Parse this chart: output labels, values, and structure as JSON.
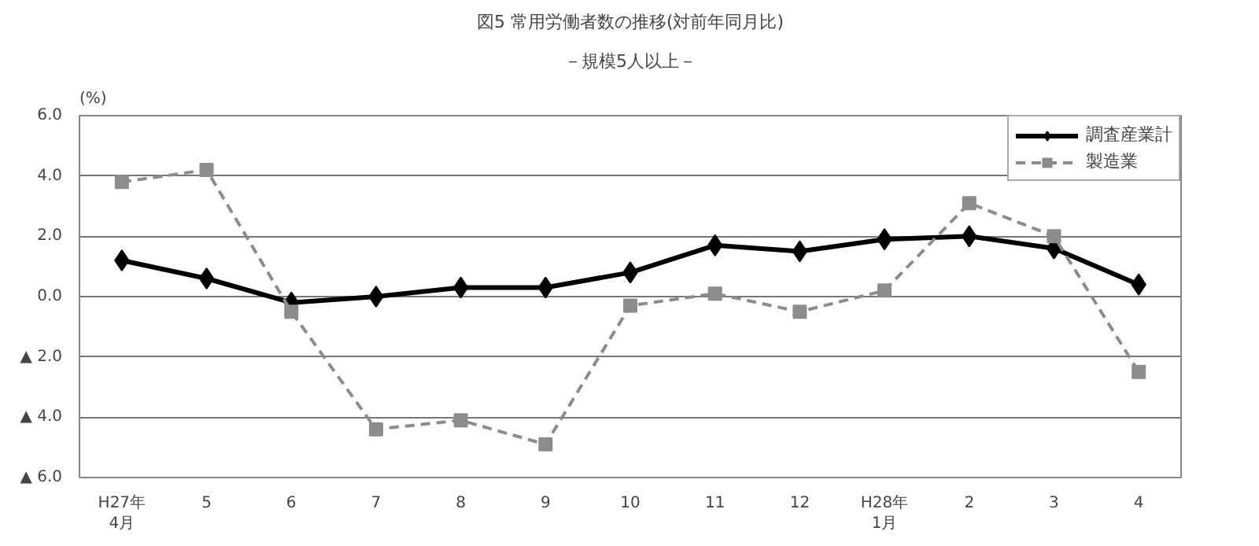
{
  "chart_data": {
    "type": "line",
    "title": "図5 常用労働者数の推移(対前年同月比)",
    "subtitle": "－規模5人以上－",
    "ylabel": "(%)",
    "categories": [
      "H27年\n4月",
      "5",
      "6",
      "7",
      "8",
      "9",
      "10",
      "11",
      "12",
      "H28年\n1月",
      "2",
      "3",
      "4"
    ],
    "series": [
      {
        "name": "調査産業計",
        "color": "#000000",
        "marker": "diamond",
        "line_style": "solid",
        "values": [
          1.2,
          0.6,
          -0.2,
          0.0,
          0.3,
          0.3,
          0.8,
          1.7,
          1.5,
          1.9,
          2.0,
          1.6,
          0.4
        ]
      },
      {
        "name": "製造業",
        "color": "#8c8c8c",
        "marker": "square",
        "line_style": "dashed",
        "values": [
          3.8,
          4.2,
          -0.5,
          -4.4,
          -4.1,
          -4.9,
          -0.3,
          0.1,
          -0.5,
          0.2,
          3.1,
          2.0,
          -2.5
        ]
      }
    ],
    "ylim": [
      -6,
      6
    ],
    "yticks": [
      {
        "value": -6,
        "label": "▲ 6.0"
      },
      {
        "value": -4,
        "label": "▲ 4.0"
      },
      {
        "value": -2,
        "label": "▲ 2.0"
      },
      {
        "value": 0,
        "label": "0.0"
      },
      {
        "value": 2,
        "label": "2.0"
      },
      {
        "value": 4,
        "label": "4.0"
      },
      {
        "value": 6,
        "label": "6.0"
      }
    ],
    "grid": "y",
    "legend": "top right"
  }
}
